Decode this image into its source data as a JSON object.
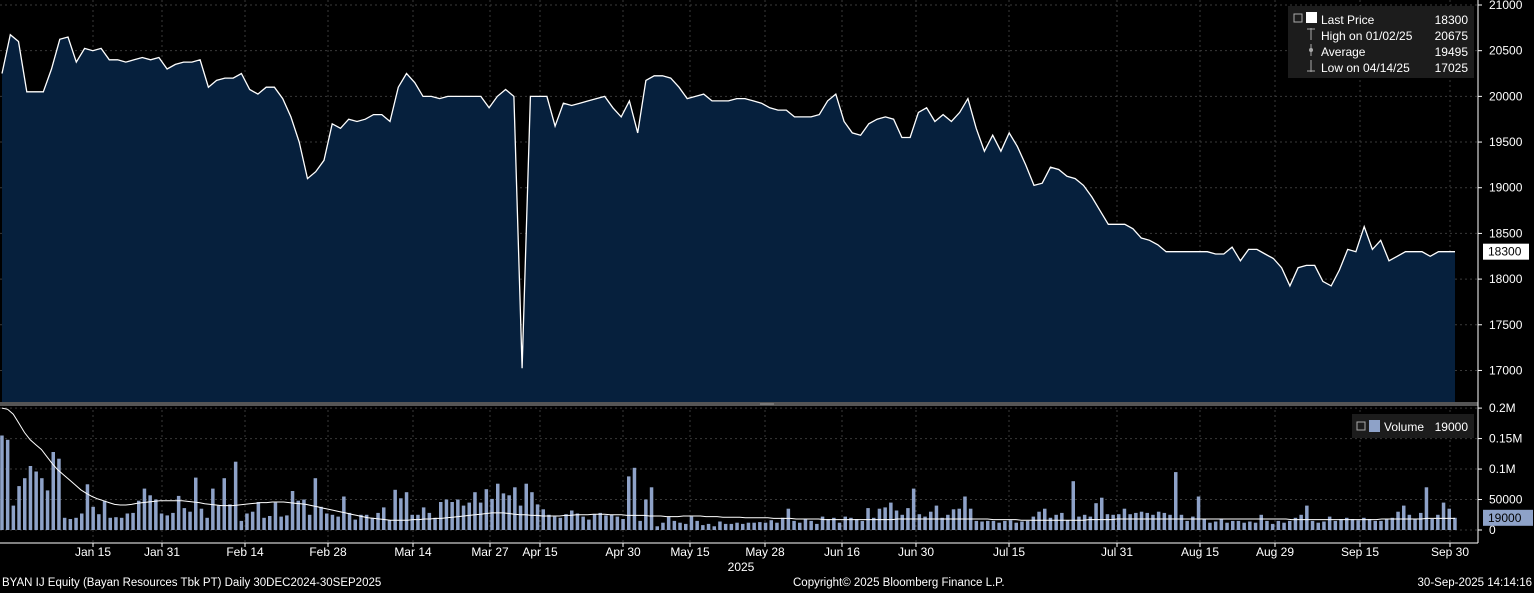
{
  "chart_data": [
    {
      "type": "area",
      "title": "",
      "xlabel": "2025",
      "ylabel": "",
      "ylim": [
        16600,
        21000
      ],
      "y_ticks": [
        "21000",
        "20500",
        "20000",
        "19500",
        "19000",
        "18500",
        "18000",
        "17500",
        "17000"
      ],
      "x_tick_labels": [
        "Jan 15",
        "Jan 31",
        "Feb 14",
        "Feb 28",
        "Mar 14",
        "Mar 27",
        "Apr 15",
        "Apr 30",
        "May 15",
        "May 28",
        "Jun 16",
        "Jun 30",
        "Jul 15",
        "Jul 31",
        "Aug 15",
        "Aug 29",
        "Sep 15",
        "Sep 30"
      ],
      "grid": true,
      "legend_position": "top-right",
      "colors": {
        "fill": "#06203d",
        "line": "#ffffff",
        "background": "#000000"
      },
      "legend": [
        {
          "label": "Last Price",
          "value": "18300"
        },
        {
          "label": "High on 01/02/25",
          "value": "20675"
        },
        {
          "label": "Average",
          "value": "19495"
        },
        {
          "label": "Low on 04/14/25",
          "value": "17025"
        }
      ],
      "last_value_tag": "18300",
      "series": [
        {
          "values": [
            20250,
            20675,
            20600,
            20050,
            20050,
            20050,
            20300,
            20625,
            20650,
            20375,
            20525,
            20500,
            20525,
            20400,
            20400,
            20375,
            20400,
            20425,
            20400,
            20425,
            20300,
            20350,
            20375,
            20375,
            20400,
            20100,
            20175,
            20200,
            20200,
            20250,
            20075,
            20025,
            20100,
            20100,
            19975,
            19775,
            19500,
            19100,
            19175,
            19300,
            19700,
            19650,
            19750,
            19725,
            19750,
            19800,
            19800,
            19725,
            20100,
            20250,
            20150,
            20000,
            20000,
            19975,
            20000,
            20000,
            20000,
            20000,
            20000,
            19875,
            20000,
            20075,
            20000,
            17025,
            20000,
            20000,
            20000,
            19675,
            19925,
            19900,
            19925,
            19950,
            19975,
            20000,
            19875,
            19775,
            19950,
            19600,
            20175,
            20225,
            20225,
            20200,
            20100,
            19975,
            20000,
            20025,
            19950,
            19950,
            19950,
            19975,
            19975,
            19950,
            19925,
            19875,
            19850,
            19850,
            19775,
            19775,
            19775,
            19800,
            19950,
            20025,
            19725,
            19600,
            19575,
            19700,
            19750,
            19775,
            19750,
            19550,
            19550,
            19825,
            19875,
            19725,
            19800,
            19725,
            19825,
            19975,
            19650,
            19400,
            19575,
            19400,
            19600,
            19450,
            19250,
            19025,
            19050,
            19225,
            19200,
            19125,
            19100,
            19025,
            18900,
            18750,
            18600,
            18600,
            18600,
            18550,
            18450,
            18425,
            18375,
            18300,
            18300,
            18300,
            18300,
            18300,
            18300,
            18275,
            18275,
            18350,
            18200,
            18325,
            18325,
            18275,
            18225,
            18125,
            17925,
            18125,
            18150,
            18150,
            17975,
            17925,
            18100,
            18325,
            18300,
            18575,
            18325,
            18425,
            18200,
            18250,
            18300,
            18300,
            18300,
            18250,
            18300,
            18300,
            18300
          ]
        }
      ]
    },
    {
      "type": "bar",
      "title": "",
      "xlabel": "",
      "ylabel": "",
      "ylim": [
        0,
        0.21
      ],
      "y_ticks": [
        "0.2M",
        "0.15M",
        "0.1M",
        "50000",
        "0"
      ],
      "legend_position": "top-right",
      "colors": {
        "bar": "#8ea2c8",
        "line": "#ffffff"
      },
      "legend": [
        {
          "label": "Volume",
          "value": "19000"
        }
      ],
      "last_value_tag": "19000",
      "series": [
        {
          "values": [
            0.155,
            0.148,
            0.04,
            0.072,
            0.085,
            0.105,
            0.096,
            0.085,
            0.065,
            0.128,
            0.117,
            0.02,
            0.018,
            0.02,
            0.027,
            0.075,
            0.038,
            0.026,
            0.048,
            0.02,
            0.021,
            0.02,
            0.027,
            0.028,
            0.048,
            0.068,
            0.057,
            0.05,
            0.027,
            0.024,
            0.028,
            0.056,
            0.036,
            0.03,
            0.086,
            0.035,
            0.02,
            0.068,
            0.04,
            0.085,
            0.042,
            0.112,
            0.015,
            0.027,
            0.03,
            0.046,
            0.02,
            0.023,
            0.045,
            0.022,
            0.024,
            0.064,
            0.048,
            0.05,
            0.025,
            0.085,
            0.038,
            0.027,
            0.025,
            0.022,
            0.055,
            0.028,
            0.017,
            0.025,
            0.025,
            0.02,
            0.028,
            0.037,
            0.016,
            0.066,
            0.052,
            0.062,
            0.025,
            0.025,
            0.037,
            0.028,
            0.02,
            0.046,
            0.05,
            0.046,
            0.05,
            0.04,
            0.045,
            0.062,
            0.045,
            0.067,
            0.051,
            0.076,
            0.06,
            0.057,
            0.07,
            0.04,
            0.076,
            0.062,
            0.042,
            0.034,
            0.025,
            0.022,
            0.02,
            0.026,
            0.032,
            0.027,
            0.022,
            0.017,
            0.026,
            0.028,
            0.024,
            0.025,
            0.022,
            0.018,
            0.088,
            0.102,
            0.015,
            0.05,
            0.07,
            0.006,
            0.012,
            0.022,
            0.015,
            0.012,
            0.01,
            0.022,
            0.015,
            0.008,
            0.01,
            0.006,
            0.014,
            0.01,
            0.01,
            0.012,
            0.01,
            0.012,
            0.012,
            0.013,
            0.012,
            0.016,
            0.012,
            0.02,
            0.035,
            0.015,
            0.012,
            0.018,
            0.015,
            0.01,
            0.022,
            0.018,
            0.02,
            0.012,
            0.022,
            0.02,
            0.018,
            0.015,
            0.036,
            0.02,
            0.035,
            0.037,
            0.045,
            0.032,
            0.025,
            0.036,
            0.068,
            0.026,
            0.022,
            0.03,
            0.04,
            0.02,
            0.025,
            0.034,
            0.035,
            0.055,
            0.035,
            0.015,
            0.014,
            0.015,
            0.015,
            0.012,
            0.015,
            0.016,
            0.012,
            0.014,
            0.015,
            0.022,
            0.03,
            0.035,
            0.02,
            0.025,
            0.028,
            0.016,
            0.08,
            0.022,
            0.025,
            0.022,
            0.044,
            0.053,
            0.026,
            0.025,
            0.026,
            0.035,
            0.026,
            0.028,
            0.03,
            0.028,
            0.025,
            0.03,
            0.028,
            0.025,
            0.095,
            0.025,
            0.015,
            0.022,
            0.055,
            0.018,
            0.012,
            0.014,
            0.018,
            0.012,
            0.015,
            0.015,
            0.012,
            0.014,
            0.012,
            0.025,
            0.015,
            0.01,
            0.015,
            0.012,
            0.015,
            0.02,
            0.025,
            0.04,
            0.015,
            0.012,
            0.014,
            0.022,
            0.015,
            0.018,
            0.02,
            0.018,
            0.016,
            0.02,
            0.018,
            0.015,
            0.015,
            0.018,
            0.02,
            0.03,
            0.04,
            0.025,
            0.018,
            0.028,
            0.07,
            0.018,
            0.025,
            0.045,
            0.035,
            0.02
          ]
        },
        {
          "values": [
            0.2,
            0.198,
            0.19,
            0.175,
            0.16,
            0.148,
            0.14,
            0.132,
            0.12,
            0.108,
            0.098,
            0.09,
            0.082,
            0.074,
            0.066,
            0.06,
            0.055,
            0.051,
            0.048,
            0.045,
            0.042,
            0.041,
            0.041,
            0.042,
            0.044,
            0.045,
            0.046,
            0.047,
            0.048,
            0.048,
            0.048,
            0.048,
            0.048,
            0.047,
            0.046,
            0.045,
            0.043,
            0.042,
            0.041,
            0.04,
            0.04,
            0.04,
            0.041,
            0.042,
            0.043,
            0.044,
            0.045,
            0.045,
            0.046,
            0.046,
            0.046,
            0.045,
            0.044,
            0.043,
            0.042,
            0.04,
            0.038,
            0.036,
            0.034,
            0.032,
            0.03,
            0.028,
            0.026,
            0.024,
            0.022,
            0.02,
            0.019,
            0.018,
            0.017,
            0.016,
            0.016,
            0.016,
            0.016,
            0.017,
            0.017,
            0.018,
            0.018,
            0.019,
            0.019,
            0.02,
            0.021,
            0.022,
            0.023,
            0.024,
            0.025,
            0.026,
            0.027,
            0.028,
            0.028,
            0.028,
            0.027,
            0.026,
            0.025,
            0.025,
            0.024,
            0.024,
            0.023,
            0.023,
            0.023,
            0.023,
            0.024,
            0.024,
            0.025,
            0.025,
            0.025,
            0.026,
            0.026,
            0.026,
            0.025,
            0.025,
            0.025,
            0.024,
            0.024,
            0.024,
            0.024,
            0.023,
            0.023,
            0.023,
            0.022,
            0.022,
            0.022,
            0.023,
            0.023,
            0.023,
            0.023,
            0.022,
            0.022,
            0.022,
            0.021,
            0.021,
            0.021,
            0.021,
            0.02,
            0.02,
            0.02,
            0.02,
            0.02,
            0.019,
            0.019,
            0.019,
            0.019,
            0.018,
            0.018,
            0.018,
            0.018,
            0.018,
            0.017,
            0.017,
            0.017,
            0.017,
            0.017,
            0.017,
            0.017,
            0.017,
            0.017,
            0.017,
            0.017,
            0.017,
            0.017,
            0.018,
            0.018,
            0.018,
            0.018,
            0.018,
            0.018,
            0.018,
            0.018,
            0.018,
            0.018,
            0.018,
            0.018,
            0.018,
            0.018,
            0.018,
            0.018,
            0.018,
            0.017,
            0.017,
            0.017,
            0.017,
            0.017,
            0.016,
            0.016,
            0.016,
            0.016,
            0.016,
            0.016,
            0.016,
            0.016,
            0.016,
            0.016,
            0.016,
            0.016,
            0.017,
            0.017,
            0.017,
            0.017,
            0.017,
            0.018,
            0.018,
            0.018,
            0.018,
            0.018,
            0.018,
            0.018,
            0.018,
            0.018,
            0.018,
            0.018,
            0.018,
            0.018,
            0.018,
            0.018,
            0.018,
            0.018,
            0.018,
            0.018,
            0.018,
            0.018,
            0.018,
            0.018,
            0.018,
            0.018,
            0.018,
            0.018,
            0.018,
            0.018,
            0.018,
            0.018,
            0.017,
            0.017,
            0.017,
            0.017,
            0.017,
            0.017,
            0.017,
            0.017,
            0.017,
            0.017,
            0.017,
            0.017,
            0.017,
            0.017,
            0.017,
            0.017,
            0.018,
            0.018,
            0.018,
            0.018,
            0.018,
            0.018,
            0.018,
            0.018,
            0.019,
            0.019,
            0.019,
            0.019,
            0.019,
            0.019
          ]
        }
      ]
    }
  ],
  "footer": {
    "security": "BYAN IJ Equity (Bayan Resources Tbk PT)  Daily 30DEC2024-30SEP2025",
    "copyright": "Copyright© 2025 Bloomberg Finance L.P.",
    "timestamp": "30-Sep-2025 14:14:16"
  }
}
